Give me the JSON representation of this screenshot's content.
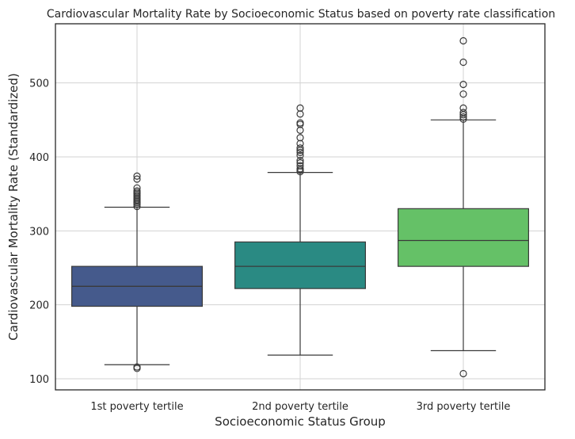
{
  "chart_data": {
    "type": "box",
    "title": "Cardiovascular Mortality Rate by Socioeconomic Status based on poverty rate classification",
    "xlabel": "Socioeconomic Status Group",
    "ylabel": "Cardiovascular Mortality Rate (Standardized)",
    "ylim": [
      85,
      580
    ],
    "yticks": [
      100,
      200,
      300,
      400,
      500
    ],
    "grid": true,
    "categories": [
      "1st poverty tertile",
      "2nd poverty tertile",
      "3rd poverty tertile"
    ],
    "boxes": [
      {
        "category": "1st poverty tertile",
        "color": "#455a8c",
        "whisker_low": 119,
        "q1": 198,
        "median": 225,
        "q3": 252,
        "whisker_high": 332,
        "outliers": [
          114,
          116,
          333,
          336,
          338,
          340,
          342,
          344,
          346,
          348,
          350,
          352,
          354,
          358,
          370,
          374
        ]
      },
      {
        "category": "2nd poverty tertile",
        "color": "#2a8a83",
        "whisker_low": 132,
        "q1": 222,
        "median": 252,
        "q3": 285,
        "whisker_high": 379,
        "outliers": [
          380,
          382,
          384,
          388,
          392,
          395,
          402,
          406,
          409,
          412,
          418,
          426,
          436,
          444,
          446,
          458,
          466
        ]
      },
      {
        "category": "3rd poverty tertile",
        "color": "#65c167",
        "whisker_low": 138,
        "q1": 252,
        "median": 287,
        "q3": 330,
        "whisker_high": 450,
        "outliers": [
          107,
          451,
          454,
          457,
          460,
          466,
          485,
          498,
          528,
          557
        ]
      }
    ]
  }
}
